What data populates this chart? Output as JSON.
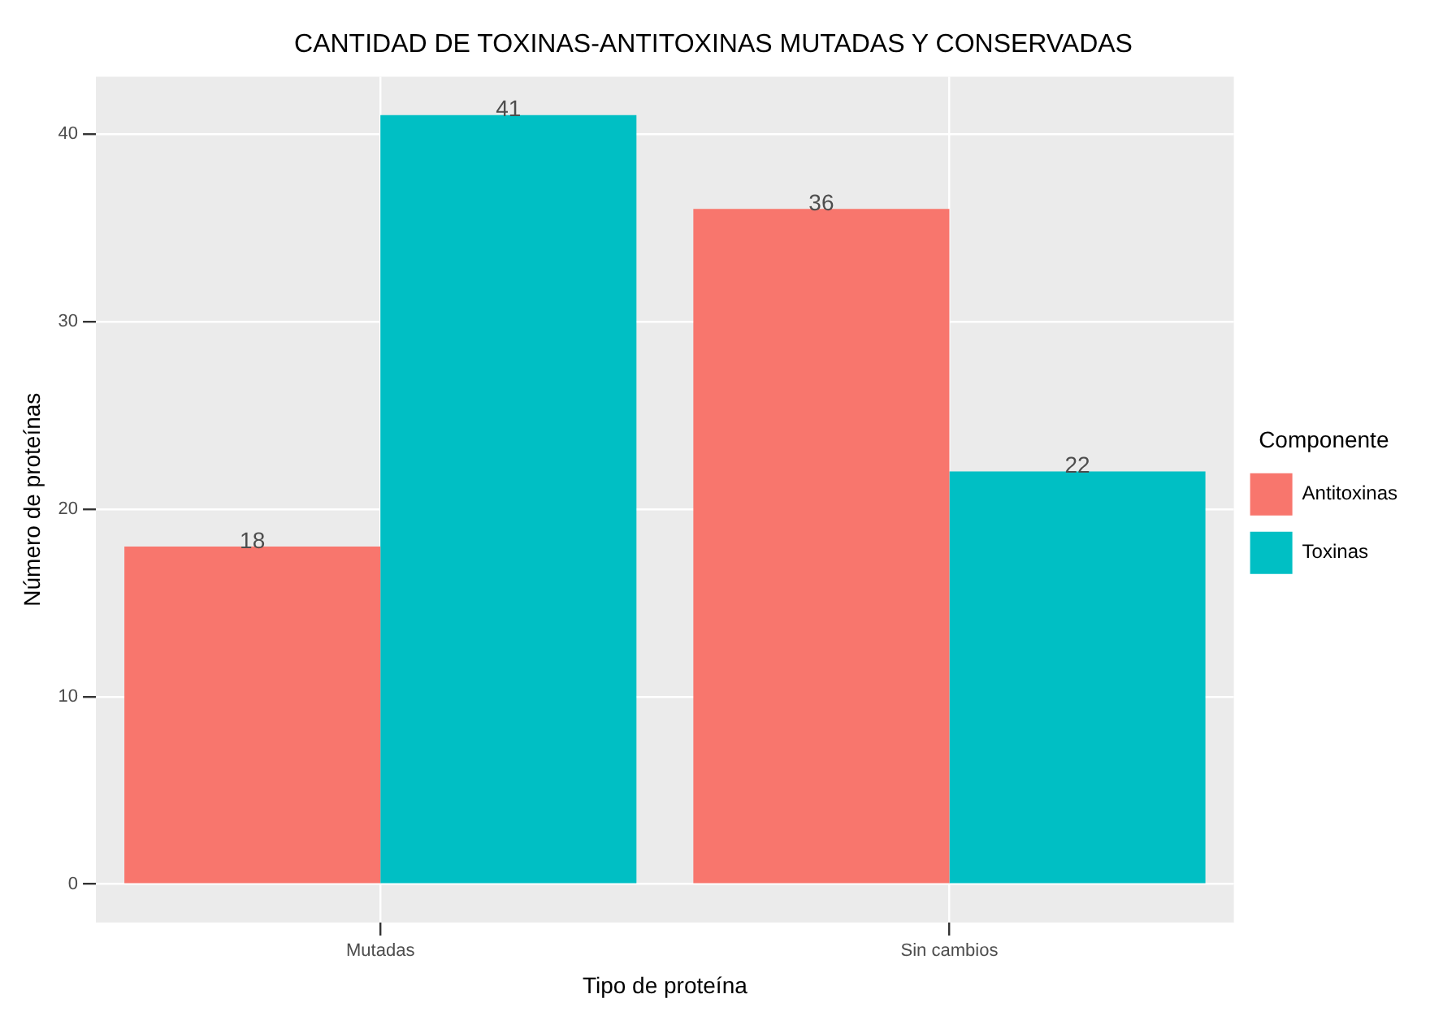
{
  "chart_data": {
    "type": "bar",
    "title": "CANTIDAD DE TOXINAS-ANTITOXINAS MUTADAS Y CONSERVADAS",
    "xlabel": "Tipo de proteína",
    "ylabel": "Número de proteínas",
    "legend_title": "Componente",
    "categories": [
      "Mutadas",
      "Sin cambios"
    ],
    "series": [
      {
        "name": "Antitoxinas",
        "color": "#f8766d",
        "values": [
          18,
          36
        ]
      },
      {
        "name": "Toxinas",
        "color": "#00bfc4",
        "values": [
          41,
          22
        ]
      }
    ],
    "ylim": [
      -2.05,
      43.05
    ],
    "yticks": [
      0,
      10,
      20,
      30,
      40
    ],
    "grid": true,
    "legend": "right",
    "data_labels": true
  }
}
